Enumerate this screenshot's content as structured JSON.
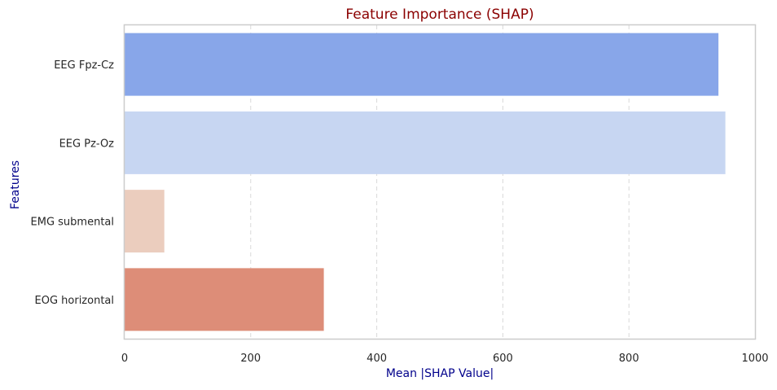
{
  "chart_data": {
    "type": "bar",
    "orientation": "horizontal",
    "title": "Feature Importance (SHAP)",
    "xlabel": "Mean |SHAP Value|",
    "ylabel": "Features",
    "categories": [
      "EEG Fpz-Cz",
      "EEG Pz-Oz",
      "EMG submental",
      "EOG horizontal"
    ],
    "values": [
      942,
      953,
      63,
      316
    ],
    "bar_colors": [
      "#88a6e9",
      "#c7d6f2",
      "#ebcdbe",
      "#dd8d78"
    ],
    "xlim": [
      0,
      1000
    ],
    "x_ticks": [
      0,
      200,
      400,
      600,
      800,
      1000
    ],
    "grid": "vertical dashed",
    "colors": {
      "title": "#8b0000",
      "axis_label": "#00008b",
      "tick": "#262626",
      "frame": "#cccccc",
      "grid": "#d9d9d9"
    }
  }
}
